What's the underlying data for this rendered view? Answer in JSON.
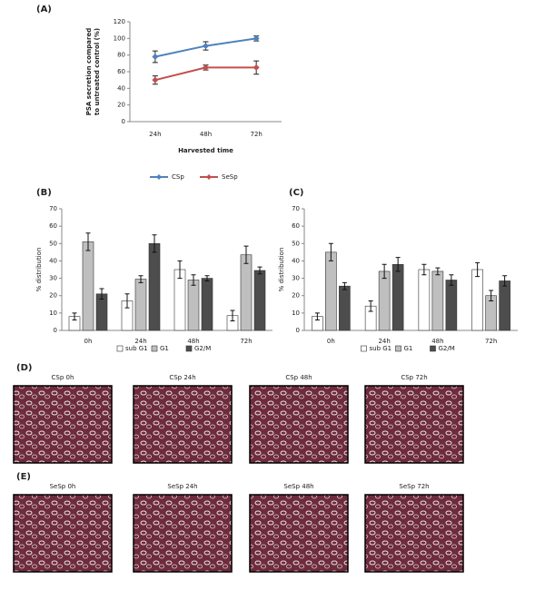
{
  "chart_data": [
    {
      "type": "line",
      "panel": "(A)",
      "ylabel": [
        "PSA secretion compared",
        "to untreated control (%)"
      ],
      "xlabel": "Harvested time",
      "categories": [
        "24h",
        "48h",
        "72h"
      ],
      "series": [
        {
          "name": "CSp",
          "color": "#4f81bd",
          "values": [
            78,
            91,
            100
          ],
          "errors": [
            7,
            5,
            3
          ]
        },
        {
          "name": "SeSp",
          "color": "#c0504d",
          "values": [
            50,
            65,
            65
          ],
          "errors": [
            5,
            3,
            8
          ]
        }
      ],
      "ylim": [
        0,
        120
      ],
      "yticks": [
        0,
        20,
        40,
        60,
        80,
        100,
        120
      ]
    },
    {
      "type": "bar",
      "panel": "(B)",
      "ylabel": "% distribution",
      "categories": [
        "0h",
        "24h",
        "48h",
        "72h"
      ],
      "series": [
        {
          "name": "sub G1",
          "color": "#ffffff",
          "values": [
            8,
            17,
            35,
            8.5
          ],
          "errors": [
            2,
            4,
            5,
            3
          ]
        },
        {
          "name": "G1",
          "color": "#bfbfbf",
          "values": [
            51,
            29.5,
            29,
            43.5
          ],
          "errors": [
            5,
            2,
            3,
            5
          ]
        },
        {
          "name": "G2/M",
          "color": "#4d4d4d",
          "values": [
            21,
            50,
            30,
            34.5
          ],
          "errors": [
            3,
            5,
            1.5,
            2
          ]
        }
      ],
      "ylim": [
        0,
        70
      ],
      "yticks": [
        0,
        10,
        20,
        30,
        40,
        50,
        60,
        70
      ]
    },
    {
      "type": "bar",
      "panel": "(C)",
      "ylabel": "% distribution",
      "categories": [
        "0h",
        "24h",
        "48h",
        "72h"
      ],
      "series": [
        {
          "name": "sub G1",
          "color": "#ffffff",
          "values": [
            8,
            14,
            35,
            35
          ],
          "errors": [
            2,
            3,
            3,
            4
          ]
        },
        {
          "name": "G1",
          "color": "#bfbfbf",
          "values": [
            45,
            34,
            34,
            20
          ],
          "errors": [
            5,
            4,
            2,
            3
          ]
        },
        {
          "name": "G2/M",
          "color": "#4d4d4d",
          "values": [
            25.5,
            38,
            29,
            28.5
          ],
          "errors": [
            2,
            4,
            3,
            3
          ]
        }
      ],
      "ylim": [
        0,
        70
      ],
      "yticks": [
        0,
        10,
        20,
        30,
        40,
        50,
        60,
        70
      ]
    }
  ],
  "panels": [
    {
      "label": "(D)",
      "images": [
        "CSp 0h",
        "CSp 24h",
        "CSp 48h",
        "CSp 72h"
      ]
    },
    {
      "label": "(E)",
      "images": [
        "SeSp 0h",
        "SeSp 24h",
        "SeSp 48h",
        "SeSp 72h"
      ]
    }
  ]
}
